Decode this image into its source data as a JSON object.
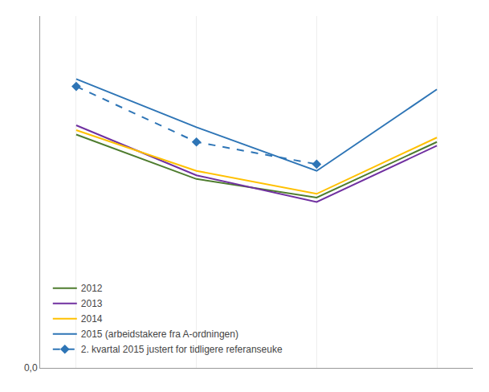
{
  "chart_data": {
    "type": "line",
    "x": [
      1,
      2,
      3,
      4
    ],
    "series": [
      {
        "name": "2012",
        "color": "#4e7c2e",
        "line_style": "solid",
        "values": [
          6.3,
          5.1,
          4.6,
          6.1
        ]
      },
      {
        "name": "2013",
        "color": "#7030a0",
        "line_style": "solid",
        "values": [
          6.55,
          5.2,
          4.48,
          6.0
        ]
      },
      {
        "name": "2014",
        "color": "#ffc000",
        "line_style": "solid",
        "values": [
          6.42,
          5.32,
          4.7,
          6.22
        ]
      },
      {
        "name": "2015 (arbeidstakere fra A-ordningen)",
        "color": "#2E75B6",
        "line_style": "solid",
        "values": [
          7.8,
          6.5,
          5.32,
          7.52
        ]
      },
      {
        "name": "2. kvartal 2015 justert for tidligere referanseuke",
        "color": "#2E75B6",
        "line_style": "dashed",
        "marker": "diamond",
        "x": [
          1,
          2,
          3
        ],
        "values": [
          7.6,
          6.1,
          5.5
        ]
      }
    ],
    "xlim": [
      0.7,
      4.3
    ],
    "xticks": [
      1,
      2,
      3,
      4
    ],
    "ylim": [
      0.0,
      9.5
    ],
    "yticks": [
      {
        "value": 0.0,
        "label": "0,0"
      }
    ],
    "tick_labels": "y",
    "grid": true,
    "legend": "lower left"
  }
}
